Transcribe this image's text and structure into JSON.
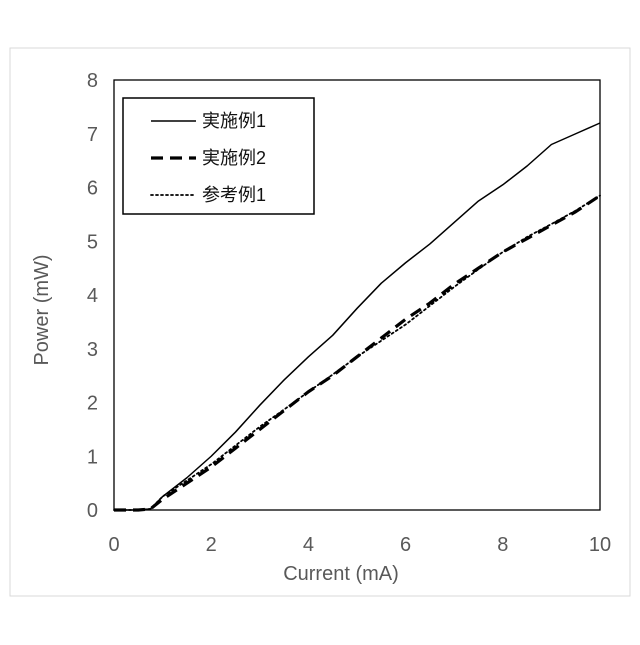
{
  "chart_data": {
    "type": "line",
    "title": "",
    "xlabel": "Current (mA)",
    "ylabel": "Power (mW)",
    "xlim": [
      0,
      10
    ],
    "ylim": [
      0,
      8
    ],
    "xticks": [
      "0",
      "2",
      "4",
      "6",
      "8",
      "10"
    ],
    "yticks": [
      "0",
      "1",
      "2",
      "3",
      "4",
      "5",
      "6",
      "7",
      "8"
    ],
    "grid": false,
    "legend_position": "top-left",
    "series": [
      {
        "name": "実施例1",
        "style": "solid",
        "color": "#000000",
        "x": [
          0,
          0.5,
          0.75,
          1,
          1.5,
          2,
          2.5,
          3,
          3.5,
          4,
          4.5,
          5,
          5.5,
          6,
          6.5,
          7,
          7.5,
          8,
          8.5,
          9,
          9.5,
          10
        ],
        "y": [
          0,
          0,
          0.02,
          0.25,
          0.6,
          1.0,
          1.45,
          1.95,
          2.42,
          2.85,
          3.25,
          3.75,
          4.22,
          4.6,
          4.95,
          5.35,
          5.75,
          6.05,
          6.4,
          6.8,
          7.0,
          7.2
        ]
      },
      {
        "name": "実施例2",
        "style": "dashed",
        "color": "#000000",
        "x": [
          0,
          0.5,
          0.75,
          1,
          1.5,
          2,
          2.5,
          3,
          3.5,
          4,
          4.5,
          5,
          5.5,
          6,
          6.5,
          7,
          7.5,
          8,
          8.5,
          9,
          9.5,
          10
        ],
        "y": [
          0,
          0,
          0.02,
          0.2,
          0.5,
          0.8,
          1.15,
          1.5,
          1.85,
          2.2,
          2.5,
          2.85,
          3.2,
          3.55,
          3.85,
          4.2,
          4.5,
          4.8,
          5.05,
          5.3,
          5.55,
          5.85
        ]
      },
      {
        "name": "参考例1",
        "style": "dotted",
        "color": "#000000",
        "x": [
          0,
          0.5,
          0.75,
          1,
          1.5,
          2,
          2.5,
          3,
          3.5,
          4,
          4.5,
          5,
          5.5,
          6,
          6.5,
          7,
          7.5,
          8,
          8.5,
          9,
          9.5,
          10
        ],
        "y": [
          0,
          0,
          0.02,
          0.25,
          0.55,
          0.85,
          1.2,
          1.55,
          1.87,
          2.2,
          2.52,
          2.85,
          3.15,
          3.45,
          3.8,
          4.15,
          4.48,
          4.8,
          5.08,
          5.32,
          5.57,
          5.85
        ]
      }
    ]
  }
}
